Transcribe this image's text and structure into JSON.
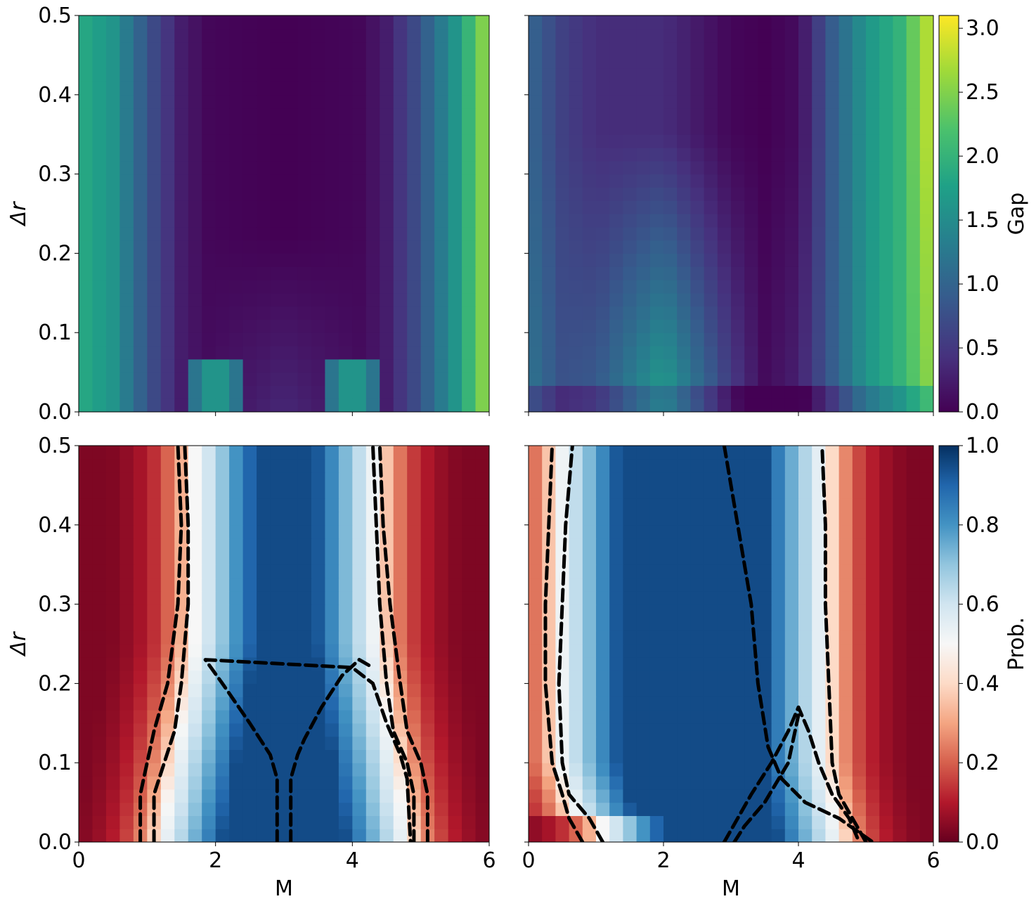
{
  "chart_data": [
    {
      "type": "heatmap",
      "panel": "top-left",
      "xlim": [
        0,
        6
      ],
      "ylim": [
        0,
        0.5
      ],
      "xlabel": "",
      "ylabel": "Δr",
      "xticks": [],
      "yticks": [
        "0.0",
        "0.1",
        "0.2",
        "0.3",
        "0.4",
        "0.5"
      ],
      "grid_cols": 30,
      "grid_rows": 30,
      "colormap": "viridis",
      "value_range": [
        0,
        3.1
      ],
      "m_profile": {
        "m": [
          0.0,
          0.5,
          1.0,
          1.5,
          1.9,
          2.5,
          3.0,
          3.5,
          4.1,
          4.5,
          5.0,
          5.5,
          6.0
        ],
        "gap": [
          1.9,
          1.6,
          0.8,
          0.25,
          0.05,
          0.02,
          0.0,
          0.02,
          0.05,
          0.25,
          0.8,
          1.6,
          2.7
        ]
      },
      "low_dr_features": [
        {
          "m": 2.0,
          "dr_max": 0.06,
          "gap": 1.8
        },
        {
          "m": 4.0,
          "dr_max": 0.06,
          "gap": 1.8
        }
      ]
    },
    {
      "type": "heatmap",
      "panel": "top-right",
      "xlim": [
        0,
        6
      ],
      "ylim": [
        0,
        0.5
      ],
      "xlabel": "",
      "ylabel": "",
      "xticks": [],
      "yticks": [],
      "grid_cols": 30,
      "grid_rows": 30,
      "colormap": "viridis",
      "value_range": [
        0,
        3.1
      ],
      "colorbar": {
        "label": "Gap",
        "ticks": [
          "0.0",
          "0.5",
          "1.0",
          "1.5",
          "2.0",
          "2.5",
          "3.0"
        ],
        "tick_values": [
          0,
          0.5,
          1.0,
          1.5,
          2.0,
          2.5,
          3.0
        ]
      },
      "m_profile": {
        "m": [
          0.0,
          0.5,
          1.0,
          2.0,
          3.0,
          3.5,
          4.0,
          4.5,
          5.0,
          5.5,
          6.0
        ],
        "gap_high_dr": [
          1.0,
          0.6,
          0.4,
          0.4,
          0.05,
          0.0,
          0.1,
          0.9,
          1.6,
          2.0,
          2.9
        ],
        "gap_center_low_dr": [
          1.2,
          0.8,
          0.9,
          1.8,
          0.6,
          0.1,
          0.3,
          0.9,
          1.6,
          2.0,
          2.6
        ]
      }
    },
    {
      "type": "heatmap",
      "panel": "bottom-left",
      "xlim": [
        0,
        6
      ],
      "ylim": [
        0,
        0.5
      ],
      "xlabel": "M",
      "ylabel": "Δr",
      "xticks": [
        "0",
        "2",
        "4",
        "6"
      ],
      "yticks": [
        "0.0",
        "0.1",
        "0.2",
        "0.3",
        "0.4",
        "0.5"
      ],
      "grid_cols": 30,
      "grid_rows": 30,
      "colormap": "RdBu",
      "value_range": [
        0,
        1
      ],
      "contours": [
        {
          "dr": [
            0.0,
            0.06,
            0.1,
            0.14,
            0.2,
            0.3,
            0.4,
            0.5
          ],
          "m": [
            0.9,
            0.9,
            1.0,
            1.1,
            1.3,
            1.45,
            1.5,
            1.45
          ]
        },
        {
          "dr": [
            0.0,
            0.06,
            0.1,
            0.14,
            0.2,
            0.3,
            0.4,
            0.5
          ],
          "m": [
            1.1,
            1.1,
            1.25,
            1.4,
            1.5,
            1.6,
            1.6,
            1.55
          ]
        },
        {
          "dr": [
            0.0,
            0.06,
            0.1,
            0.14,
            0.2,
            0.3,
            0.4,
            0.5
          ],
          "m": [
            4.9,
            4.9,
            4.8,
            4.6,
            4.5,
            4.4,
            4.35,
            4.3
          ]
        },
        {
          "dr": [
            0.0,
            0.06,
            0.1,
            0.14,
            0.2,
            0.3,
            0.4,
            0.5
          ],
          "m": [
            5.1,
            5.1,
            5.0,
            4.8,
            4.7,
            4.55,
            4.45,
            4.4
          ]
        },
        {
          "dr": [
            0.0,
            0.08,
            0.11,
            0.15,
            0.2,
            0.23,
            0.22,
            0.2,
            0.15,
            0.11,
            0.08,
            0.0
          ],
          "m": [
            2.9,
            2.9,
            2.8,
            2.5,
            2.1,
            1.85,
            4.0,
            4.3,
            4.5,
            4.7,
            4.8,
            4.85
          ]
        },
        {
          "dr": [
            0.0,
            0.08,
            0.11,
            0.13,
            0.17,
            0.21,
            0.23,
            0.22
          ],
          "m": [
            3.1,
            3.1,
            3.2,
            3.3,
            3.55,
            3.85,
            4.1,
            4.3
          ]
        }
      ]
    },
    {
      "type": "heatmap",
      "panel": "bottom-right",
      "xlim": [
        0,
        6
      ],
      "ylim": [
        0,
        0.5
      ],
      "xlabel": "M",
      "ylabel": "",
      "xticks": [
        "0",
        "2",
        "4",
        "6"
      ],
      "yticks": [],
      "grid_cols": 30,
      "grid_rows": 30,
      "colormap": "RdBu",
      "value_range": [
        0,
        1
      ],
      "colorbar": {
        "label": "Prob.",
        "ticks": [
          "0.0",
          "0.2",
          "0.4",
          "0.6",
          "0.8",
          "1.0"
        ],
        "tick_values": [
          0,
          0.2,
          0.4,
          0.6,
          0.8,
          1.0
        ]
      },
      "contours": [
        {
          "dr": [
            0.0,
            0.03,
            0.06,
            0.1,
            0.2,
            0.3,
            0.4,
            0.5
          ],
          "m": [
            0.8,
            0.6,
            0.5,
            0.35,
            0.25,
            0.25,
            0.3,
            0.35
          ]
        },
        {
          "dr": [
            0.0,
            0.03,
            0.06,
            0.1,
            0.2,
            0.3,
            0.4,
            0.5
          ],
          "m": [
            1.1,
            0.9,
            0.6,
            0.5,
            0.45,
            0.5,
            0.55,
            0.65
          ]
        },
        {
          "dr": [
            0.0,
            0.03,
            0.06,
            0.1,
            0.14,
            0.17,
            0.14,
            0.1,
            0.06,
            0.03,
            0.0
          ],
          "m": [
            2.9,
            3.1,
            3.3,
            3.6,
            3.85,
            4.0,
            4.15,
            4.3,
            4.5,
            4.75,
            4.9
          ]
        },
        {
          "dr": [
            0.0,
            0.02,
            0.05,
            0.1,
            0.14,
            0.16
          ],
          "m": [
            3.05,
            3.2,
            3.5,
            3.85,
            3.95,
            4.0
          ]
        },
        {
          "dr": [
            0.5,
            0.45,
            0.4,
            0.35,
            0.3,
            0.25,
            0.2,
            0.12,
            0.08,
            0.05,
            0.03,
            0.0
          ],
          "m": [
            2.9,
            3.0,
            3.1,
            3.2,
            3.3,
            3.35,
            3.4,
            3.55,
            3.75,
            4.1,
            4.6,
            5.1
          ]
        },
        {
          "dr": [
            0.0,
            0.03,
            0.06,
            0.1,
            0.2,
            0.3,
            0.4,
            0.5
          ],
          "m": [
            5.0,
            4.8,
            4.6,
            4.5,
            4.45,
            4.4,
            4.4,
            4.35
          ]
        }
      ]
    }
  ]
}
